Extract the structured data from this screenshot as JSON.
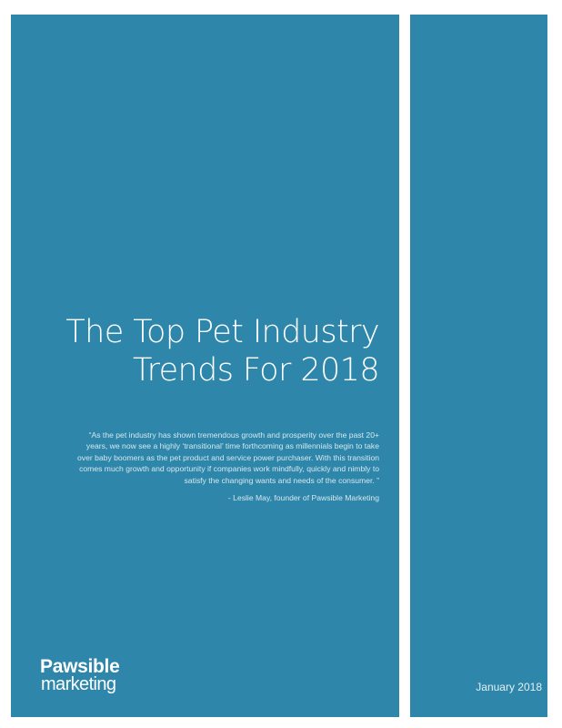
{
  "cover": {
    "title_line1": "The Top Pet Industry",
    "title_line2": "Trends For 2018",
    "quote_lines": [
      "“As the pet industry has shown tremendous growth and prosperity over the past 20+",
      "years, we now see a highly ‘transitional’ time forthcoming as millennials begin to take",
      "over baby boomers as the pet product and service power purchaser. With this transition",
      "comes much growth and opportunity if companies work mindfully, quickly and nimbly to",
      "satisfy the changing wants and needs of the consumer. ”"
    ],
    "attribution": "-  Leslie May, founder of Pawsible Marketing",
    "logo_top": "Pawsible",
    "logo_bottom": "marketing",
    "date": "January 2018"
  },
  "colors": {
    "panel": "#2e87aa",
    "text": "#ffffff"
  }
}
